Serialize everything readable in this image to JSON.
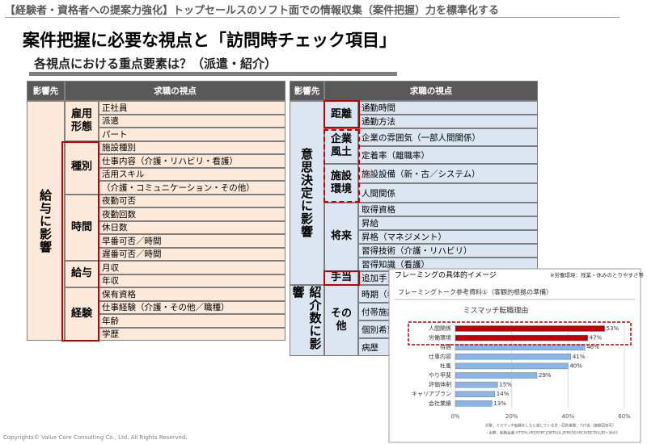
{
  "header": {
    "banner": "【経験者・資格者への提案力強化】トップセールスのソフト面での情報収集（案件把握）力を標準化する",
    "title": "案件把握に必要な視点と「訪問時チェック項目」",
    "subtitle": "各視点における重点要素は？（派遣・紹介）"
  },
  "left_table": {
    "headers": [
      "影響先",
      "求職の視点"
    ],
    "impact": "給与に影響",
    "groups": [
      {
        "label": "雇用形態",
        "items": [
          "正社員",
          "派遣",
          "パート"
        ]
      },
      {
        "label": "種別",
        "items": [
          "施設種別",
          "仕事内容（介護・リハビリ・看護）",
          "活用スキル",
          "（介護・コミュニケーション・その他）"
        ]
      },
      {
        "label": "時間",
        "items": [
          "夜勤可否",
          "夜勤回数",
          "休日数",
          "早番可否／時間",
          "遅番可否／時間"
        ]
      },
      {
        "label": "給与",
        "items": [
          "月収",
          "年収"
        ]
      },
      {
        "label": "経験",
        "items": [
          "保有資格",
          "仕事経験（介護・その他／職種）",
          "年齢",
          "学歴"
        ]
      }
    ]
  },
  "right_table": {
    "headers": [
      "影響先",
      "求職の視点"
    ],
    "sections": [
      {
        "impact": "意思決定に影響",
        "groups": [
          {
            "label": "距離",
            "items": [
              "通勤時間",
              "通勤方法"
            ]
          },
          {
            "label": "企業風土",
            "items": [
              "企業の雰囲気（一部人間関係）",
              "定着率（離職率）"
            ]
          },
          {
            "label": "施設環境",
            "items": [
              "施設設備（新・古／システム）",
              "人間関係"
            ]
          },
          {
            "label": "将来",
            "items": [
              "取得資格",
              "昇給",
              "昇格（マネジメント）",
              "習得技術（介護・リハビリ）",
              "習得知識（看護）"
            ]
          },
          {
            "label": "手当",
            "items": [
              "追加手当"
            ]
          }
        ]
      },
      {
        "impact": "紹介数に影響",
        "groups": [
          {
            "label": "その他",
            "items": [
              "時期（希望時",
              "付帯施設",
              "個別希望",
              "病歴"
            ]
          }
        ]
      }
    ]
  },
  "inset": {
    "title": "フレーミングの具体的イメージ",
    "note": "※労働環境：残業・休みのとりやすさ等",
    "heading": "フレーミングトーク参考資料①（客観的根拠の準備）",
    "chart": {
      "type": "bar",
      "title": "ミスマッチ転職理由",
      "categories": [
        "人間関係",
        "労働環境",
        "待遇",
        "仕事内容",
        "社風",
        "やり甲斐",
        "評価体制",
        "キャリアプラン",
        "会社業績"
      ],
      "values": [
        53,
        47,
        46,
        41,
        40,
        29,
        15,
        14,
        13
      ],
      "value_labels": [
        "53%",
        "47%",
        "46%",
        "41%",
        "40%",
        "29%",
        "15%",
        "14%",
        "13%"
      ],
      "colors": [
        "#c00000",
        "#c00000",
        "#8eb4e3",
        "#8eb4e3",
        "#8eb4e3",
        "#8eb4e3",
        "#8eb4e3",
        "#8eb4e3",
        "#8eb4e3"
      ],
      "xlim": [
        0,
        60
      ],
      "xticks": [
        {
          "value": 0,
          "label": "0%"
        },
        {
          "value": 20,
          "label": "20%"
        },
        {
          "value": 40,
          "label": "40%"
        },
        {
          "value": 60,
          "label": "60%"
        }
      ],
      "grid": true
    },
    "source": [
      "対象：ミスマッチ転職をしたと感じている方・回答者数：737名（複数回答可）",
      "・出典：転職会議 HTTPS://REPORT.JOBTALK.JP/RESEARCH/DETAIL/ID=3643"
    ]
  },
  "footer": "Copyrights© Value Core Consulting Co., Ltd. All Rights Reserved."
}
